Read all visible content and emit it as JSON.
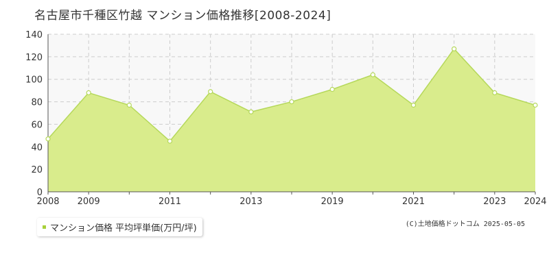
{
  "title": "名古屋市千種区竹越 マンション価格推移[2008-2024]",
  "legend": {
    "label": "マンション価格 平均坪単価(万円/坪)"
  },
  "credit": "(C)土地価格ドットコム 2025-05-05",
  "colors": {
    "fill": "#d9ec8c",
    "line": "#b5d85a",
    "marker_fill": "#ffffff",
    "marker_stroke": "#b5d85a",
    "plot_bg": "#f8f8f8",
    "grid": "#cccccc",
    "axis": "#555555",
    "legend_swatch": "#a8d03a"
  },
  "chart_data": {
    "type": "area",
    "x": [
      2008,
      2009,
      2010,
      2011,
      2012,
      2013,
      2014,
      2019,
      2020,
      2021,
      2022,
      2023,
      2024
    ],
    "tick_labels": [
      "2008",
      "2009",
      "",
      "2011",
      "",
      "2013",
      "",
      "2019",
      "",
      "2021",
      "",
      "2023",
      "2024"
    ],
    "series": [
      {
        "name": "マンション価格 平均坪単価(万円/坪)",
        "values": [
          47,
          88,
          77,
          45,
          89,
          71,
          80,
          91,
          104,
          77,
          127,
          88,
          77
        ]
      }
    ],
    "y_ticks": [
      0,
      20,
      40,
      60,
      80,
      100,
      120,
      140
    ],
    "ylim": [
      0,
      140
    ],
    "grid": true
  }
}
